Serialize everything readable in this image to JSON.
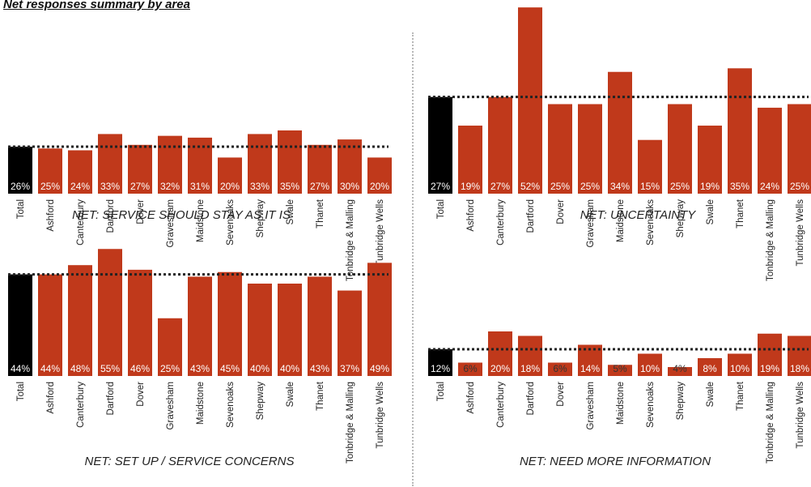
{
  "page_title": "Net responses summary by area",
  "colors": {
    "total": "#000000",
    "area": "#c0391b",
    "reference": "#222222"
  },
  "chart_data": [
    {
      "type": "bar",
      "title": "NET: SERVICE SHOULD STAY AS IT IS",
      "categories": [
        "Total",
        "Ashford",
        "Canterbury",
        "Dartford",
        "Dover",
        "Gravesham",
        "Maidstone",
        "Sevenoaks",
        "Shepway",
        "Swale",
        "Thanet",
        "Tonbridge & Malling",
        "Tunbridge Wells"
      ],
      "values": [
        26,
        25,
        24,
        33,
        27,
        32,
        31,
        20,
        33,
        35,
        27,
        30,
        20
      ],
      "labels": [
        "26%",
        "25%",
        "24%",
        "33%",
        "27%",
        "32%",
        "31%",
        "20%",
        "33%",
        "35%",
        "27%",
        "30%",
        "20%"
      ],
      "reference_line": 26
    },
    {
      "type": "bar",
      "title": "NET: UNCERTAINTY",
      "categories": [
        "Total",
        "Ashford",
        "Canterbury",
        "Dartford",
        "Dover",
        "Gravesham",
        "Maidstone",
        "Sevenoaks",
        "Shepway",
        "Swale",
        "Thanet",
        "Tonbridge & Malling",
        "Tunbridge Wells"
      ],
      "values": [
        27,
        19,
        27,
        52,
        25,
        25,
        34,
        15,
        25,
        19,
        35,
        24,
        25
      ],
      "labels": [
        "27%",
        "19%",
        "27%",
        "52%",
        "25%",
        "25%",
        "34%",
        "15%",
        "25%",
        "19%",
        "35%",
        "24%",
        "25%"
      ],
      "reference_line": 27
    },
    {
      "type": "bar",
      "title": "NET: SET UP / SERVICE CONCERNS",
      "categories": [
        "Total",
        "Ashford",
        "Canterbury",
        "Dartford",
        "Dover",
        "Gravesham",
        "Maidstone",
        "Sevenoaks",
        "Shepway",
        "Swale",
        "Thanet",
        "Tonbridge & Malling",
        "Tunbridge Wells"
      ],
      "values": [
        44,
        44,
        48,
        55,
        46,
        25,
        43,
        45,
        40,
        40,
        43,
        37,
        49
      ],
      "labels": [
        "44%",
        "44%",
        "48%",
        "55%",
        "46%",
        "25%",
        "43%",
        "45%",
        "40%",
        "40%",
        "43%",
        "37%",
        "49%"
      ],
      "reference_line": 44
    },
    {
      "type": "bar",
      "title": "NET: NEED MORE INFORMATION",
      "categories": [
        "Total",
        "Ashford",
        "Canterbury",
        "Dartford",
        "Dover",
        "Gravesham",
        "Maidstone",
        "Sevenoaks",
        "Shepway",
        "Swale",
        "Thanet",
        "Tonbridge & Malling",
        "Tunbridge Wells"
      ],
      "values": [
        12,
        6,
        20,
        18,
        6,
        14,
        5,
        10,
        4,
        8,
        10,
        19,
        18
      ],
      "labels": [
        "12%",
        "6%",
        "20%",
        "18%",
        "6%",
        "14%",
        "5%",
        "10%",
        "4%",
        "8%",
        "10%",
        "19%",
        "18%"
      ],
      "reference_line": 12
    }
  ]
}
